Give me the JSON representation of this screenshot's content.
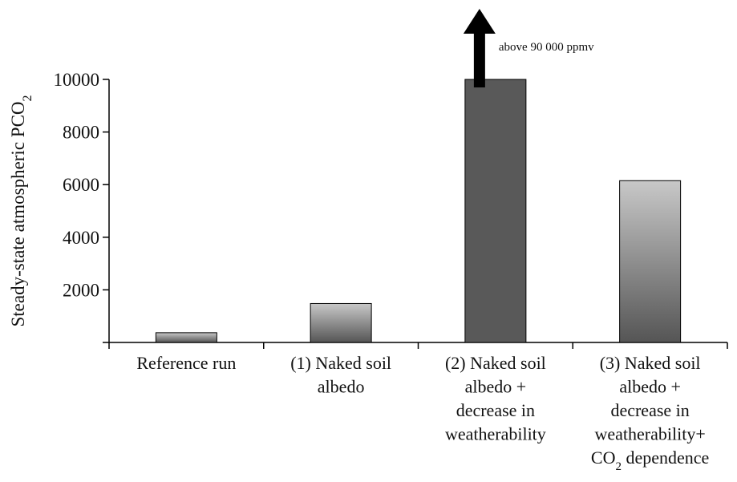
{
  "chart_data": {
    "type": "bar",
    "title": "",
    "xlabel": "",
    "ylabel": {
      "text": "Steady-state atmospheric PCO",
      "subscript": "2"
    },
    "ylim": [
      0,
      10000
    ],
    "yticks": [
      2000,
      4000,
      6000,
      8000,
      10000
    ],
    "categories": [
      {
        "label": "Reference run",
        "lines": [
          {
            "parts": [
              {
                "t": "Reference run"
              }
            ]
          }
        ]
      },
      {
        "label": "(1) Naked soil albedo",
        "lines": [
          {
            "parts": [
              {
                "t": "(1) Naked soil"
              }
            ]
          },
          {
            "parts": [
              {
                "t": "albedo"
              }
            ]
          }
        ]
      },
      {
        "label": "(2) Naked soil albedo + decrease in weatherability",
        "lines": [
          {
            "parts": [
              {
                "t": "(2) Naked soil"
              }
            ]
          },
          {
            "parts": [
              {
                "t": "albedo +"
              }
            ]
          },
          {
            "parts": [
              {
                "t": "decrease in"
              }
            ]
          },
          {
            "parts": [
              {
                "t": "weatherability"
              }
            ]
          }
        ]
      },
      {
        "label": "(3) Naked soil albedo + decrease in weatherability+ CO2 dependence",
        "lines": [
          {
            "parts": [
              {
                "t": "(3) Naked soil"
              }
            ]
          },
          {
            "parts": [
              {
                "t": "albedo +"
              }
            ]
          },
          {
            "parts": [
              {
                "t": "decrease in"
              }
            ]
          },
          {
            "parts": [
              {
                "t": "weatherability+"
              }
            ]
          },
          {
            "parts": [
              {
                "t": "CO"
              },
              {
                "t": "2",
                "sub": true
              },
              {
                "t": " dependence"
              }
            ]
          }
        ]
      }
    ],
    "values": [
      370,
      1480,
      10000,
      6150
    ],
    "bar_styles": [
      "gradient",
      "gradient",
      "solid",
      "gradient"
    ],
    "colors": {
      "solid": "#595959",
      "gradient_top": "#c8c8c8",
      "gradient_bottom": "#555555",
      "axis": "#000000"
    },
    "annotation": {
      "text": "above 90 000 ppmv",
      "target_category": 2,
      "icon": "up-arrow-icon"
    }
  }
}
